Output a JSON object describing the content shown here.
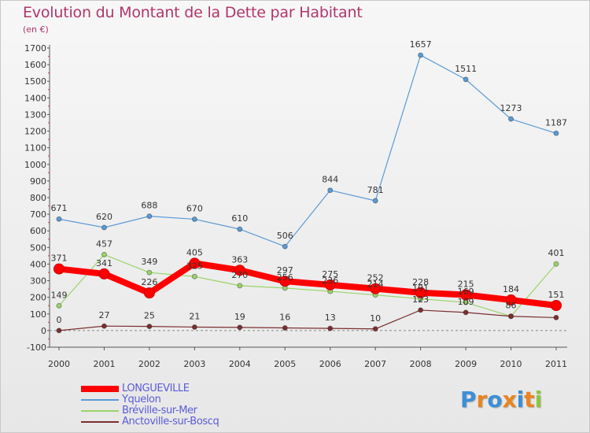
{
  "title": "Evolution du Montant de la Dette par Habitant",
  "subtitle": "(en €)",
  "logo": {
    "letters": [
      "P",
      "r",
      "o",
      "x",
      "i",
      "t",
      "i"
    ],
    "colors": [
      "#3b8fd6",
      "#e8851f",
      "#3b8fd6",
      "#e8851f",
      "#3b8fd6",
      "#e8851f",
      "#8cc63f"
    ]
  },
  "chart_data": {
    "type": "line",
    "x": [
      "2000",
      "2001",
      "2002",
      "2003",
      "2004",
      "2005",
      "2006",
      "2007",
      "2008",
      "2009",
      "2010",
      "2011"
    ],
    "ylim": [
      -100,
      1700
    ],
    "yticks": [
      -100,
      0,
      100,
      200,
      300,
      400,
      500,
      600,
      700,
      800,
      900,
      1000,
      1100,
      1200,
      1300,
      1400,
      1500,
      1600,
      1700
    ],
    "grid": false,
    "legend_position": "bottom-left",
    "series": [
      {
        "name": "Yquelon",
        "color": "#5b9bd5",
        "values": [
          671,
          620,
          688,
          670,
          610,
          506,
          844,
          781,
          1657,
          1511,
          1273,
          1187
        ],
        "labels": [
          "671",
          "620",
          "688",
          "670",
          "610",
          "506",
          "844",
          "781",
          "1657",
          "1511",
          "1273",
          "1187"
        ]
      },
      {
        "name": "Bréville-sur-Mer",
        "color": "#9ad46a",
        "values": [
          149,
          457,
          349,
          325,
          270,
          256,
          236,
          214,
          191,
          169,
          86,
          401
        ],
        "labels": [
          "149",
          "457",
          "349",
          "325",
          "270",
          "256",
          "236",
          "214",
          "191",
          "169",
          "86",
          "401"
        ]
      },
      {
        "name": "Anctoville-sur-Boscq",
        "color": "#7b2f2f",
        "values": [
          0,
          27,
          25,
          21,
          19,
          16,
          13,
          10,
          123,
          109,
          86,
          78
        ],
        "labels": [
          "0",
          "27",
          "25",
          "21",
          "19",
          "16",
          "13",
          "10",
          "123",
          "109",
          "",
          ""
        ]
      },
      {
        "name": "LONGUEVILLE",
        "color": "#ff0000",
        "values": [
          371,
          341,
          226,
          405,
          363,
          297,
          275,
          252,
          228,
          215,
          184,
          151
        ],
        "labels": [
          "371",
          "341",
          "226",
          "405",
          "363",
          "297",
          "275",
          "252",
          "228",
          "215",
          "184",
          "151"
        ]
      }
    ]
  },
  "legend": {
    "items": [
      {
        "label": "LONGUEVILLE",
        "color": "#ff0000",
        "text_color": "#5b5bd6"
      },
      {
        "label": "Yquelon",
        "color": "#5b9bd5",
        "text_color": "#5b5bd6"
      },
      {
        "label": "Bréville-sur-Mer",
        "color": "#9ad46a",
        "text_color": "#5b5bd6"
      },
      {
        "label": "Anctoville-sur-Boscq",
        "color": "#7b2f2f",
        "text_color": "#5b5bd6"
      }
    ]
  }
}
